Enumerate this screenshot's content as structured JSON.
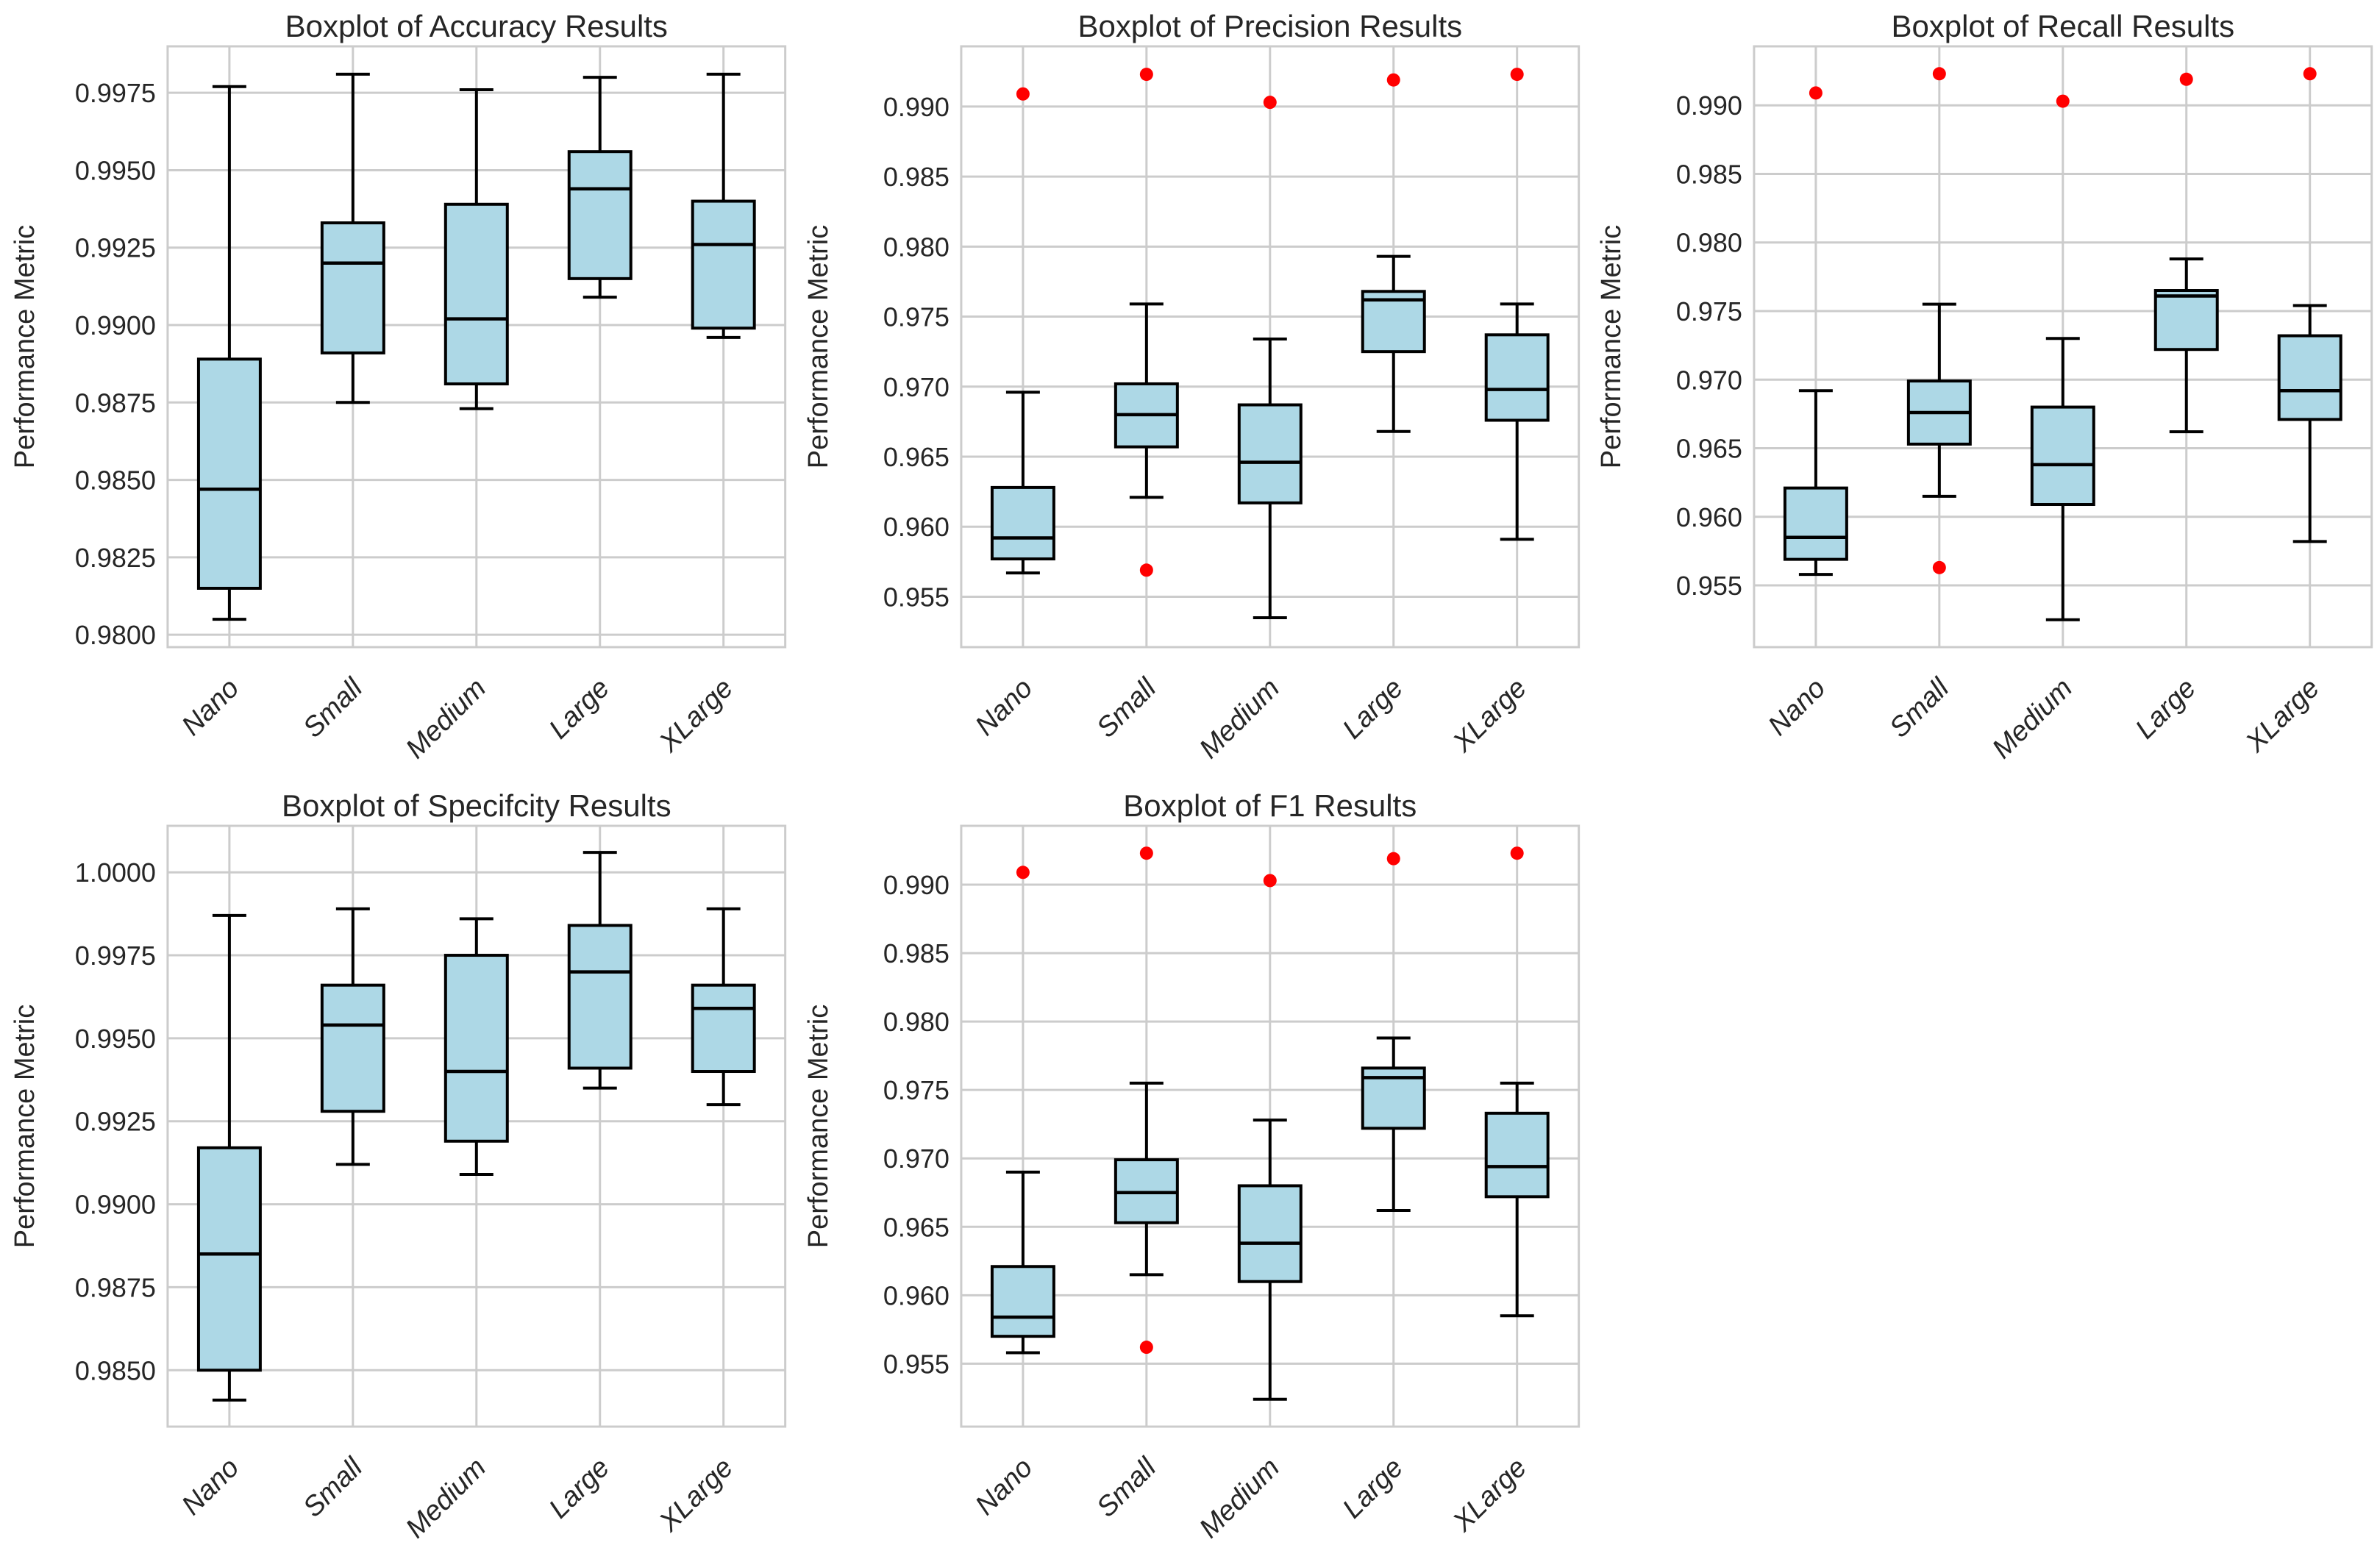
{
  "figure": {
    "background": "#FFFFFF",
    "ylabel": "Performance Metric"
  },
  "colors": {
    "box_fill": "#ADD8E6",
    "box_edge": "#000000",
    "median": "#000000",
    "whisker": "#000000",
    "outlier": "#FF0000",
    "grid": "#CCCCCC",
    "spine": "#CCCCCC",
    "text": "#262626",
    "background": "#FFFFFF"
  },
  "chart_data": [
    {
      "type": "box",
      "title": "Boxplot of Accuracy Results",
      "ylabel": "Performance Metric",
      "categories": [
        "Nano",
        "Small",
        "Medium",
        "Large",
        "XLarge"
      ],
      "ylim": [
        0.9796,
        0.999
      ],
      "yticks": [
        "0.9800",
        "0.9825",
        "0.9850",
        "0.9875",
        "0.9900",
        "0.9925",
        "0.9950",
        "0.9975"
      ],
      "grid": true,
      "boxes": [
        {
          "category": "Nano",
          "whislo": 0.9805,
          "q1": 0.9815,
          "med": 0.9847,
          "q3": 0.9889,
          "whishi": 0.9977,
          "outliers": []
        },
        {
          "category": "Small",
          "whislo": 0.9875,
          "q1": 0.9891,
          "med": 0.992,
          "q3": 0.9933,
          "whishi": 0.9981,
          "outliers": []
        },
        {
          "category": "Medium",
          "whislo": 0.9873,
          "q1": 0.9881,
          "med": 0.9902,
          "q3": 0.9939,
          "whishi": 0.9976,
          "outliers": []
        },
        {
          "category": "Large",
          "whislo": 0.9909,
          "q1": 0.9915,
          "med": 0.9944,
          "q3": 0.9956,
          "whishi": 0.998,
          "outliers": []
        },
        {
          "category": "XLarge",
          "whislo": 0.9896,
          "q1": 0.9899,
          "med": 0.9926,
          "q3": 0.994,
          "whishi": 0.9981,
          "outliers": []
        }
      ]
    },
    {
      "type": "box",
      "title": "Boxplot of Precision Results",
      "ylabel": "Performance Metric",
      "categories": [
        "Nano",
        "Small",
        "Medium",
        "Large",
        "XLarge"
      ],
      "ylim": [
        0.9514,
        0.9943
      ],
      "yticks": [
        "0.955",
        "0.960",
        "0.965",
        "0.970",
        "0.975",
        "0.980",
        "0.985",
        "0.990"
      ],
      "grid": true,
      "boxes": [
        {
          "category": "Nano",
          "whislo": 0.9567,
          "q1": 0.9577,
          "med": 0.9592,
          "q3": 0.9628,
          "whishi": 0.9696,
          "outliers": [
            0.9909
          ]
        },
        {
          "category": "Small",
          "whislo": 0.9621,
          "q1": 0.9657,
          "med": 0.968,
          "q3": 0.9702,
          "whishi": 0.9759,
          "outliers": [
            0.9923,
            0.9569
          ]
        },
        {
          "category": "Medium",
          "whislo": 0.9535,
          "q1": 0.9617,
          "med": 0.9646,
          "q3": 0.9687,
          "whishi": 0.9734,
          "outliers": [
            0.9903
          ]
        },
        {
          "category": "Large",
          "whislo": 0.9668,
          "q1": 0.9725,
          "med": 0.9762,
          "q3": 0.9768,
          "whishi": 0.9793,
          "outliers": [
            0.9919
          ]
        },
        {
          "category": "XLarge",
          "whislo": 0.9591,
          "q1": 0.9676,
          "med": 0.9698,
          "q3": 0.9737,
          "whishi": 0.9759,
          "outliers": [
            0.9923
          ]
        }
      ]
    },
    {
      "type": "box",
      "title": "Boxplot of Recall Results",
      "ylabel": "Performance Metric",
      "categories": [
        "Nano",
        "Small",
        "Medium",
        "Large",
        "XLarge"
      ],
      "ylim": [
        0.9505,
        0.9943
      ],
      "yticks": [
        "0.955",
        "0.960",
        "0.965",
        "0.970",
        "0.975",
        "0.980",
        "0.985",
        "0.990"
      ],
      "grid": true,
      "boxes": [
        {
          "category": "Nano",
          "whislo": 0.9558,
          "q1": 0.9569,
          "med": 0.9585,
          "q3": 0.9621,
          "whishi": 0.9692,
          "outliers": [
            0.9909
          ]
        },
        {
          "category": "Small",
          "whislo": 0.9615,
          "q1": 0.9653,
          "med": 0.9676,
          "q3": 0.9699,
          "whishi": 0.9755,
          "outliers": [
            0.9923,
            0.9563
          ]
        },
        {
          "category": "Medium",
          "whislo": 0.9525,
          "q1": 0.9609,
          "med": 0.9638,
          "q3": 0.968,
          "whishi": 0.973,
          "outliers": [
            0.9903
          ]
        },
        {
          "category": "Large",
          "whislo": 0.9662,
          "q1": 0.9722,
          "med": 0.9761,
          "q3": 0.9765,
          "whishi": 0.9788,
          "outliers": [
            0.9919
          ]
        },
        {
          "category": "XLarge",
          "whislo": 0.9582,
          "q1": 0.9671,
          "med": 0.9692,
          "q3": 0.9732,
          "whishi": 0.9754,
          "outliers": [
            0.9923
          ]
        }
      ]
    },
    {
      "type": "box",
      "title": "Boxplot of Specifcity Results",
      "ylabel": "Performance Metric",
      "categories": [
        "Nano",
        "Small",
        "Medium",
        "Large",
        "XLarge"
      ],
      "ylim": [
        0.9833,
        1.0014
      ],
      "yticks": [
        "0.9850",
        "0.9875",
        "0.9900",
        "0.9925",
        "0.9950",
        "0.9975",
        "1.0000"
      ],
      "grid": true,
      "boxes": [
        {
          "category": "Nano",
          "whislo": 0.9841,
          "q1": 0.985,
          "med": 0.9885,
          "q3": 0.9917,
          "whishi": 0.9987,
          "outliers": []
        },
        {
          "category": "Small",
          "whislo": 0.9912,
          "q1": 0.9928,
          "med": 0.9954,
          "q3": 0.9966,
          "whishi": 0.9989,
          "outliers": []
        },
        {
          "category": "Medium",
          "whislo": 0.9909,
          "q1": 0.9919,
          "med": 0.994,
          "q3": 0.9975,
          "whishi": 0.9986,
          "outliers": []
        },
        {
          "category": "Large",
          "whislo": 0.9935,
          "q1": 0.9941,
          "med": 0.997,
          "q3": 0.9984,
          "whishi": 1.0006,
          "outliers": []
        },
        {
          "category": "XLarge",
          "whislo": 0.993,
          "q1": 0.994,
          "med": 0.9959,
          "q3": 0.9966,
          "whishi": 0.9989,
          "outliers": []
        }
      ]
    },
    {
      "type": "box",
      "title": "Boxplot of F1 Results",
      "ylabel": "Performance Metric",
      "categories": [
        "Nano",
        "Small",
        "Medium",
        "Large",
        "XLarge"
      ],
      "ylim": [
        0.9504,
        0.9943
      ],
      "yticks": [
        "0.955",
        "0.960",
        "0.965",
        "0.970",
        "0.975",
        "0.980",
        "0.985",
        "0.990"
      ],
      "grid": true,
      "boxes": [
        {
          "category": "Nano",
          "whislo": 0.9558,
          "q1": 0.957,
          "med": 0.9584,
          "q3": 0.9621,
          "whishi": 0.969,
          "outliers": [
            0.9909
          ]
        },
        {
          "category": "Small",
          "whislo": 0.9615,
          "q1": 0.9653,
          "med": 0.9675,
          "q3": 0.9699,
          "whishi": 0.9755,
          "outliers": [
            0.9923,
            0.9562
          ]
        },
        {
          "category": "Medium",
          "whislo": 0.9524,
          "q1": 0.961,
          "med": 0.9638,
          "q3": 0.968,
          "whishi": 0.9728,
          "outliers": [
            0.9903
          ]
        },
        {
          "category": "Large",
          "whislo": 0.9662,
          "q1": 0.9722,
          "med": 0.9759,
          "q3": 0.9766,
          "whishi": 0.9788,
          "outliers": [
            0.9919
          ]
        },
        {
          "category": "XLarge",
          "whislo": 0.9585,
          "q1": 0.9672,
          "med": 0.9694,
          "q3": 0.9733,
          "whishi": 0.9755,
          "outliers": [
            0.9923
          ]
        }
      ]
    }
  ]
}
